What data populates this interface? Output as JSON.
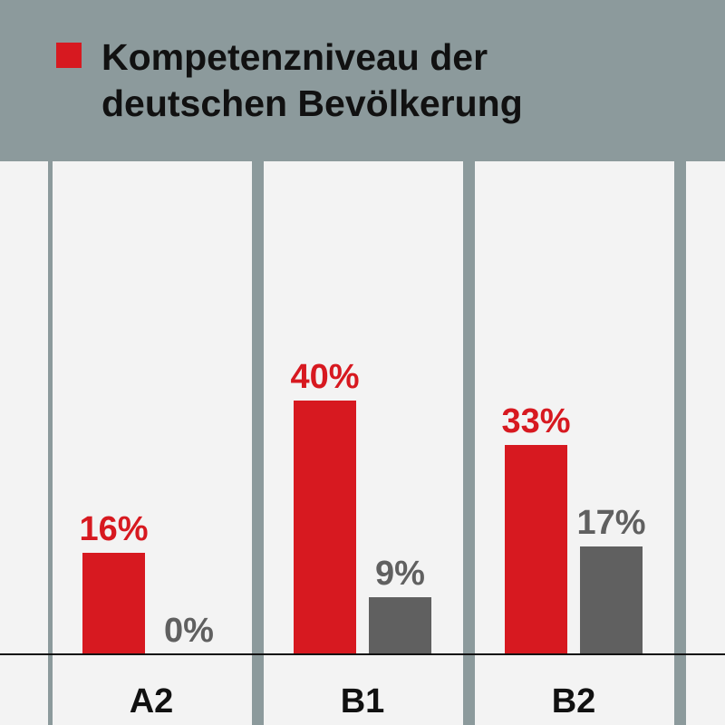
{
  "colors": {
    "background": "#8c9a9c",
    "panel": "#f3f3f3",
    "accent_red": "#d71920",
    "secondary_gray": "#606060",
    "text": "#111111"
  },
  "legend": {
    "line1": "Kompetenzniveau der",
    "line2": "deutschen Bevölkerung"
  },
  "chart_data": {
    "type": "bar",
    "categories": [
      "A2",
      "B1",
      "B2"
    ],
    "series": [
      {
        "name": "Kompetenzniveau der deutschen Bevölkerung",
        "color": "#d71920",
        "values": [
          16,
          40,
          33
        ],
        "labels": [
          "16%",
          "40%",
          "33%"
        ]
      },
      {
        "color": "#606060",
        "values": [
          0,
          9,
          17
        ],
        "labels": [
          "0%",
          "9%",
          "17%"
        ]
      }
    ],
    "ylim": [
      0,
      50
    ],
    "grid": false,
    "legend_position": "top-left"
  }
}
